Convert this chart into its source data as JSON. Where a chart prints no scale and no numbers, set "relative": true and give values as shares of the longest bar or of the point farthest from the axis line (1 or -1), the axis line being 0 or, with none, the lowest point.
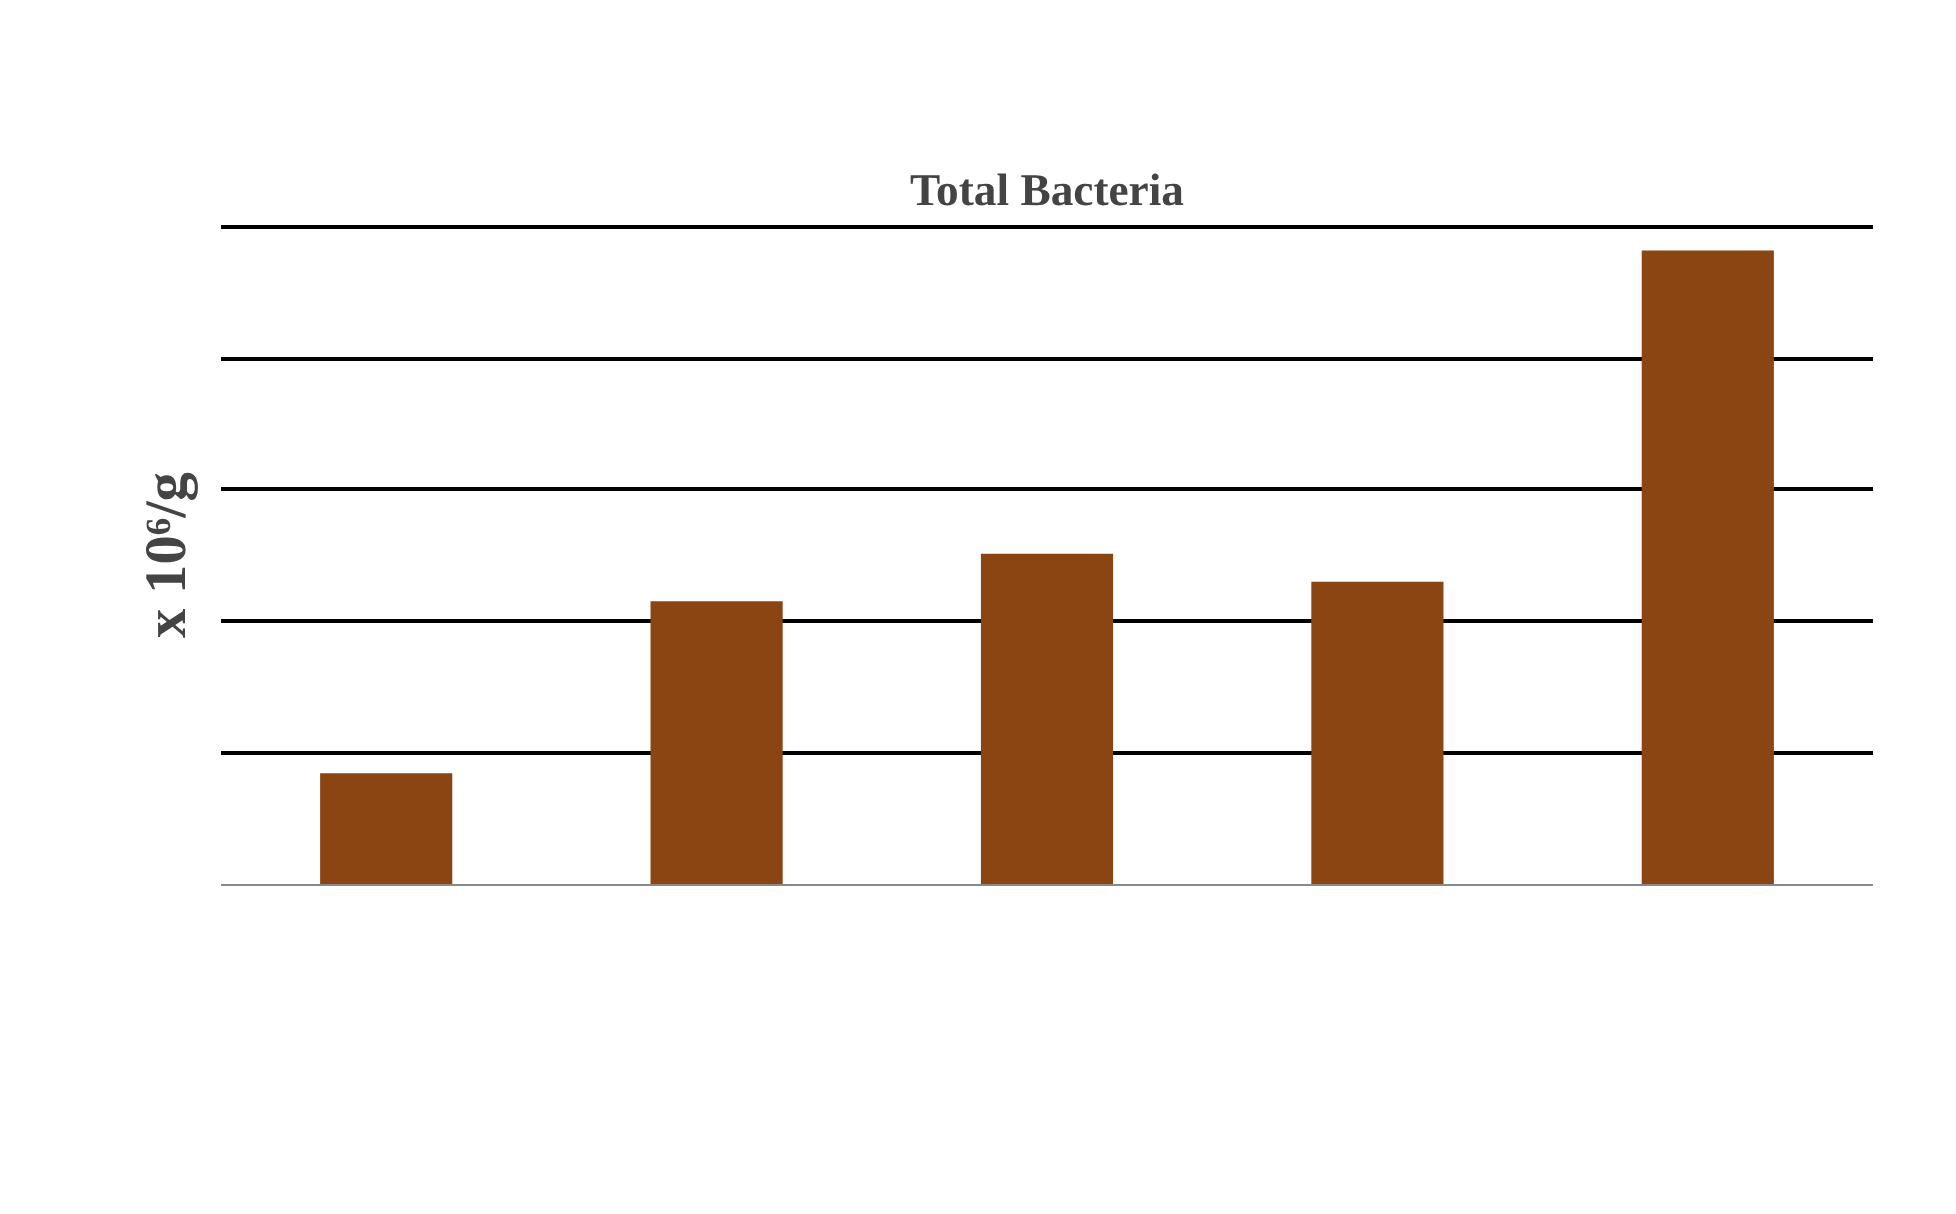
{
  "chart_data": {
    "type": "bar",
    "title": "Total Bacteria",
    "ylabel": "x 10⁶/g",
    "categories": [
      null,
      null,
      null,
      null,
      null
    ],
    "values": [
      0.176,
      0.447,
      0.522,
      0.478,
      1
    ],
    "color": "#8b4513",
    "relative": true,
    "grid": "y"
  }
}
